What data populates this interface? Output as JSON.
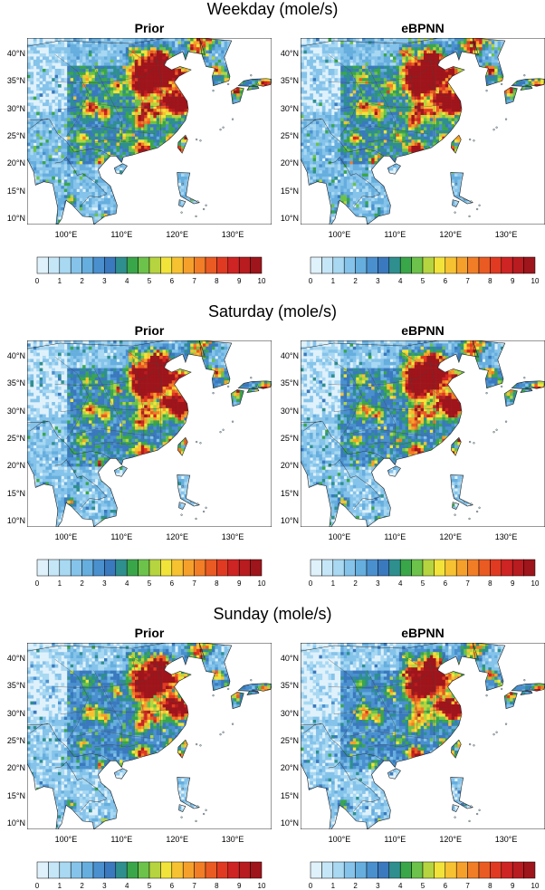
{
  "sections": [
    {
      "title": "Weekday (mole/s)",
      "panels": [
        {
          "title": "Prior",
          "intensity": 1.0
        },
        {
          "title": "eBPNN",
          "intensity": 1.0
        }
      ]
    },
    {
      "title": "Saturday (mole/s)",
      "panels": [
        {
          "title": "Prior",
          "intensity": 0.9
        },
        {
          "title": "eBPNN",
          "intensity": 0.88
        }
      ]
    },
    {
      "title": "Sunday (mole/s)",
      "panels": [
        {
          "title": "Prior",
          "intensity": 0.82
        },
        {
          "title": "eBPNN",
          "intensity": 0.8
        }
      ]
    }
  ],
  "map": {
    "lat_ticks": [
      "10°N",
      "15°N",
      "20°N",
      "25°N",
      "30°N",
      "35°N",
      "40°N"
    ],
    "lon_ticks": [
      "100°E",
      "110°E",
      "120°E",
      "130°E"
    ],
    "extent": {
      "lon": [
        93,
        137
      ],
      "lat": [
        9,
        43
      ]
    }
  },
  "colorbar": {
    "labels": [
      "0",
      "1",
      "2",
      "3",
      "4",
      "5",
      "6",
      "7",
      "8",
      "9",
      "10"
    ],
    "colors": [
      "#dff1fb",
      "#c5e6f7",
      "#a8d8f2",
      "#85c3ea",
      "#66aede",
      "#4a90cf",
      "#3a79bd",
      "#2f8f8f",
      "#3aa64a",
      "#6cc24a",
      "#b5d43f",
      "#f2e33a",
      "#f7c232",
      "#f6a02c",
      "#f17e27",
      "#ea5b23",
      "#e03a22",
      "#cf2424",
      "#b81c20",
      "#9e151b"
    ]
  }
}
